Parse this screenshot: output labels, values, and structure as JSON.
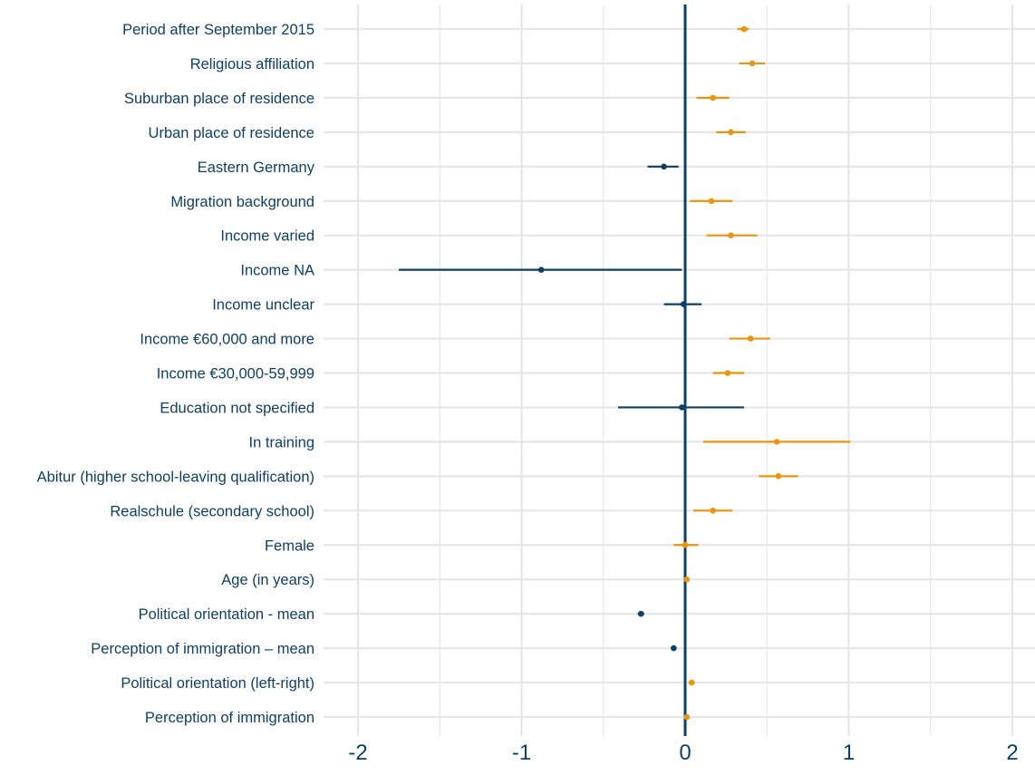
{
  "chart_data": {
    "type": "scatter",
    "subtype": "coefficient-plot",
    "title": "",
    "xlabel": "",
    "ylabel": "",
    "xlim": [
      -2,
      2
    ],
    "x_ticks": [
      -2,
      -1,
      0,
      1,
      2
    ],
    "grid": true,
    "reference_line_x": 0,
    "colors": {
      "positive": "#E8960F",
      "negative": "#0E3F66",
      "label": "#0E3F66",
      "grid": "#E6E6E6",
      "zero_line": "#0E3F66"
    },
    "categories": [
      "Period after September 2015",
      "Religious affiliation",
      "Suburban place of residence",
      "Urban place of residence",
      "Eastern Germany",
      "Migration background",
      "Income varied",
      "Income NA",
      "Income unclear",
      "Income €60,000 and more",
      "Income €30,000-59,999",
      "Education not specified",
      "In training",
      "Abitur (higher school-leaving qualification)",
      "Realschule (secondary school)",
      "Female",
      "Age (in years)",
      "Political orientation - mean",
      "Perception of immigration – mean",
      "Political orientation (left-right)",
      "Perception of immigration"
    ],
    "estimates": [
      0.36,
      0.41,
      0.17,
      0.28,
      -0.13,
      0.16,
      0.28,
      -0.88,
      -0.01,
      0.4,
      0.26,
      -0.02,
      0.56,
      0.57,
      0.17,
      0.0,
      0.01,
      -0.27,
      -0.07,
      0.04,
      0.01
    ],
    "ci_lower": [
      0.32,
      0.33,
      0.07,
      0.19,
      -0.23,
      0.03,
      0.13,
      -1.75,
      -0.13,
      0.27,
      0.17,
      -0.41,
      0.11,
      0.45,
      0.05,
      -0.07,
      0.0,
      -0.29,
      -0.08,
      0.02,
      0.0
    ],
    "ci_upper": [
      0.39,
      0.49,
      0.27,
      0.37,
      -0.04,
      0.29,
      0.44,
      -0.02,
      0.1,
      0.52,
      0.36,
      0.36,
      1.01,
      0.69,
      0.29,
      0.08,
      0.02,
      -0.25,
      -0.06,
      0.06,
      0.02
    ]
  }
}
